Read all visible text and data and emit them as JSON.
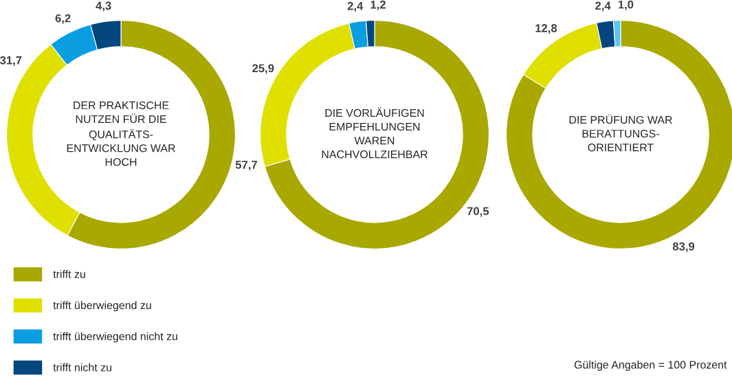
{
  "chart_data": [
    {
      "type": "donut",
      "title": "DER PRAKTISCHE\nNUTZEN FÜR DIE\nQUALITÄTS-\nENTWICKLUNG WAR\nHOCH",
      "categories": [
        "trifft zu",
        "trifft überwiegend zu",
        "trifft überwiegend nicht zu",
        "trifft nicht zu"
      ],
      "values": [
        57.7,
        31.7,
        6.2,
        4.3
      ],
      "value_labels": [
        "57,7",
        "31,7",
        "6,2",
        "4,3"
      ],
      "colors": [
        "#a8a800",
        "#dfdf00",
        "#0a9ee0",
        "#05467e"
      ],
      "legend": "bottom left"
    },
    {
      "type": "donut",
      "title": "DIE VORLÄUFIGEN\nEMPFEHLUNGEN\nWAREN\nNACHVOLLZIEHBAR",
      "values": [
        70.5,
        25.9,
        2.4,
        1.2
      ],
      "value_labels": [
        "70,5",
        "25,9",
        "2,4",
        "1,2"
      ],
      "colors": [
        "#a8a800",
        "#dfdf00",
        "#0a9ee0",
        "#05467e"
      ]
    },
    {
      "type": "donut",
      "title": "DIE PRÜFUNG WAR\nBERATTUNGS-\nORIENTIERT",
      "values": [
        83.9,
        12.8,
        2.4,
        1.0
      ],
      "value_labels": [
        "83,9",
        "12,8",
        "2,4",
        "1,0"
      ],
      "colors": [
        "#a8a800",
        "#dfdf00",
        "#05467e",
        "#5bc8f0"
      ],
      "annotations": [
        "Gültige Angaben = 100 Prozent"
      ]
    }
  ]
}
